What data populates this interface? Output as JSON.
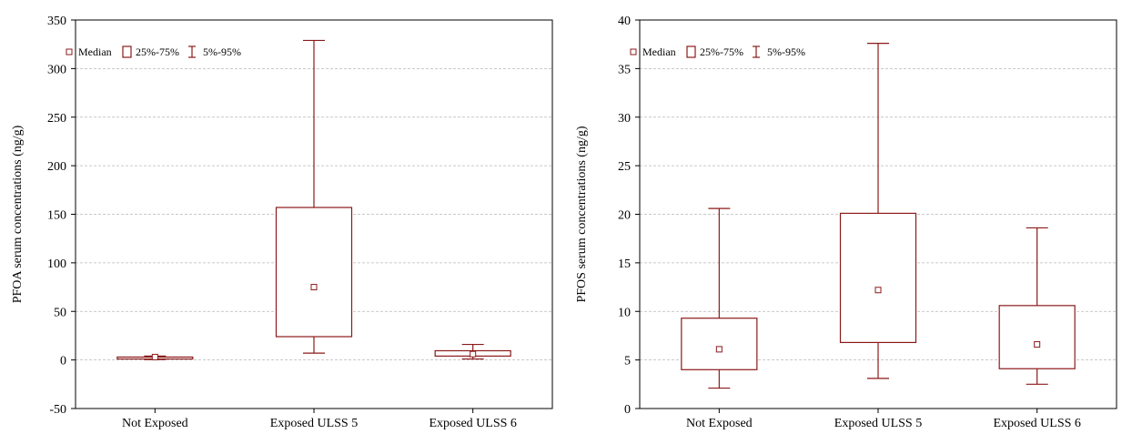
{
  "chart_data": [
    {
      "type": "boxplot",
      "ylabel": "PFOA serum concentrations (ng/g)",
      "ylim": [
        -50,
        350
      ],
      "yticks": [
        -50,
        0,
        50,
        100,
        150,
        200,
        250,
        300,
        350
      ],
      "grid": "horizontal dashed",
      "legend": {
        "position": "top-left",
        "entries": [
          "Median",
          "25%-75%",
          "5%-95%"
        ]
      },
      "color": "#8b1a1a",
      "categories": [
        "Not Exposed",
        "Exposed ULSS 5",
        "Exposed ULSS 6"
      ],
      "boxes": [
        {
          "p5": 0.5,
          "q1": 1,
          "median": 3,
          "q3": 3,
          "p95": 4
        },
        {
          "p5": 7,
          "q1": 24,
          "median": 75,
          "q3": 157,
          "p95": 329
        },
        {
          "p5": 1,
          "q1": 4,
          "median": 6,
          "q3": 9.5,
          "p95": 16
        }
      ]
    },
    {
      "type": "boxplot",
      "ylabel": "PFOS serum concentrations (ng/g)",
      "ylim": [
        0,
        40
      ],
      "yticks": [
        0,
        5,
        10,
        15,
        20,
        25,
        30,
        35,
        40
      ],
      "grid": "horizontal dashed",
      "legend": {
        "position": "top-left",
        "entries": [
          "Median",
          "25%-75%",
          "5%-95%"
        ]
      },
      "color": "#8b1a1a",
      "categories": [
        "Not Exposed",
        "Exposed ULSS 5",
        "Exposed ULSS 6"
      ],
      "boxes": [
        {
          "p5": 2.1,
          "q1": 4,
          "median": 6.1,
          "q3": 9.3,
          "p95": 20.6
        },
        {
          "p5": 3.1,
          "q1": 6.8,
          "median": 12.2,
          "q3": 20.1,
          "p95": 37.6
        },
        {
          "p5": 2.5,
          "q1": 4.1,
          "median": 6.6,
          "q3": 10.6,
          "p95": 18.6
        }
      ]
    }
  ]
}
